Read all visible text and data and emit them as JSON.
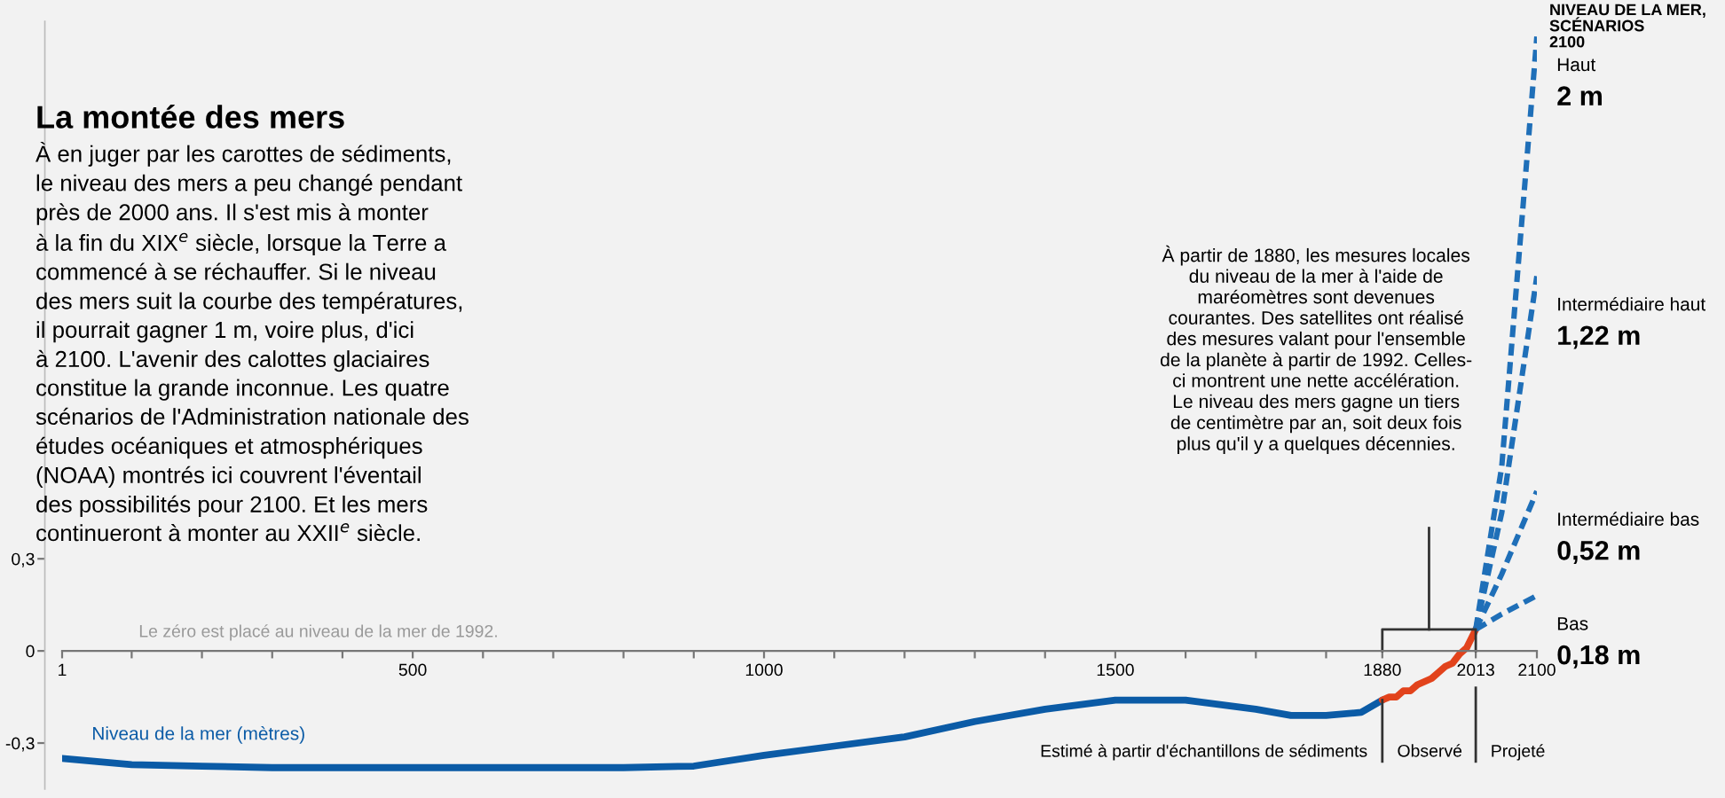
{
  "chart_data": {
    "type": "line",
    "title": "La montée des mers",
    "subtitle": "À en juger par les carottes de sédiments,\nle niveau des mers a peu changé pendant\nprès de 2000 ans. Il s'est mis à monter\nà la fin du XIX$^{e}$ siècle, lorsque la Terre a\ncommencé à se réchauffer. Si le niveau\ndes mers suit la courbe des températures,\nil pourrait gagner 1 m, voire plus, d'ici\nà 2100. L'avenir des calottes glaciaires\nconstitue la grande inconnue. Les quatre\nscénarios de l'Administration nationale des\nétudes océaniques et atmosphériques\n(NOAA) montrés ici couvrent l'éventail\ndes possibilités pour 2100. Et les mers\ncontinueront à monter au XXII$^{e}$ siècle.",
    "legend_title": "NIVEAU DE LA MER,\nSCÉNARIOS\n2100",
    "annotations": [
      "Le zéro est placé au niveau de la mer de 1992.",
      "À partir de 1880, les mesures locales\ndu niveau de la mer à l'aide de\nmaréomètres sont devenues\ncourantes. Des satellites ont réalisé\ndes mesures valant pour l'ensemble\nde la planète à partir de 1992. Celles-\nci montrent une nette accélération.\nLe niveau des mers gagne un tiers\nde centimètre par an, soit deux fois\nplus qu'il y a quelques décennies.",
      "Estimé à partir d'échantillons de sédiments",
      "Observé",
      "Projeté"
    ],
    "xlim": [
      1,
      2100
    ],
    "xticks": [
      1,
      {
        "value": 100,
        "label": null
      },
      {
        "value": 200,
        "label": null
      },
      {
        "value": 300,
        "label": null
      },
      {
        "value": 400,
        "label": null
      },
      500,
      {
        "value": 600,
        "label": null
      },
      {
        "value": 700,
        "label": null
      },
      {
        "value": 800,
        "label": null
      },
      {
        "value": 900,
        "label": null
      },
      1000,
      {
        "value": 1100,
        "label": null
      },
      {
        "value": 1200,
        "label": null
      },
      {
        "value": 1300,
        "label": null
      },
      {
        "value": 1400,
        "label": null
      },
      1500,
      {
        "value": 1600,
        "label": null
      },
      {
        "value": 1700,
        "label": null
      },
      {
        "value": 1800,
        "label": null
      },
      1880,
      2013,
      2100
    ],
    "ylim": [
      -0.45,
      2.05
    ],
    "yticks": [
      {
        "value": 0.3,
        "label": "0,3"
      },
      0,
      {
        "value": -0.3,
        "label": "-0,3"
      }
    ],
    "grid": false,
    "legend": false,
    "line_style": "solid",
    "series": [
      {
        "name": "Niveau de la mer (mètres)",
        "color": "#0b5ba6",
        "x": [
          1,
          100,
          200,
          300,
          400,
          500,
          600,
          700,
          800,
          900,
          1000,
          1100,
          1200,
          1300,
          1400,
          1500,
          1600,
          1700,
          1750,
          1800,
          1850,
          1880
        ],
        "values": [
          -0.35,
          -0.37,
          -0.375,
          -0.38,
          -0.38,
          -0.38,
          -0.38,
          -0.38,
          -0.38,
          -0.375,
          -0.34,
          -0.31,
          -0.28,
          -0.23,
          -0.19,
          -0.16,
          -0.16,
          -0.19,
          -0.21,
          -0.21,
          -0.2,
          -0.16
        ]
      },
      {
        "color": "#e2431c",
        "x": [
          1880,
          1890,
          1900,
          1910,
          1920,
          1930,
          1940,
          1950,
          1960,
          1970,
          1980,
          1990,
          2000,
          2013
        ],
        "values": [
          -0.16,
          -0.15,
          -0.15,
          -0.13,
          -0.13,
          -0.11,
          -0.1,
          -0.09,
          -0.07,
          -0.05,
          -0.04,
          -0.01,
          0.01,
          0.07
        ]
      },
      {
        "name": "Haut",
        "color": "#1f6fb8",
        "line_style": "dashed",
        "x": [
          2013,
          2050,
          2100
        ],
        "values": [
          0.07,
          0.6,
          2
        ],
        "value_labels": [
          null,
          null,
          "2 m"
        ]
      },
      {
        "name": "Intermédiaire haut",
        "color": "#1f6fb8",
        "line_style": "dashed",
        "x": [
          2013,
          2050,
          2100
        ],
        "values": [
          0.07,
          0.45,
          1.22
        ],
        "value_labels": [
          null,
          null,
          "1,22 m"
        ]
      },
      {
        "name": "Intermédiaire bas",
        "color": "#1f6fb8",
        "line_style": "dashed",
        "x": [
          2013,
          2050,
          2100
        ],
        "values": [
          0.07,
          0.25,
          0.52
        ],
        "value_labels": [
          null,
          null,
          "0,52 m"
        ]
      },
      {
        "name": "Bas",
        "color": "#1f6fb8",
        "line_style": "dashed",
        "x": [
          2013,
          2050,
          2100
        ],
        "values": [
          0.07,
          0.12,
          0.18
        ],
        "value_labels": [
          null,
          null,
          "0,18 m"
        ]
      }
    ]
  }
}
